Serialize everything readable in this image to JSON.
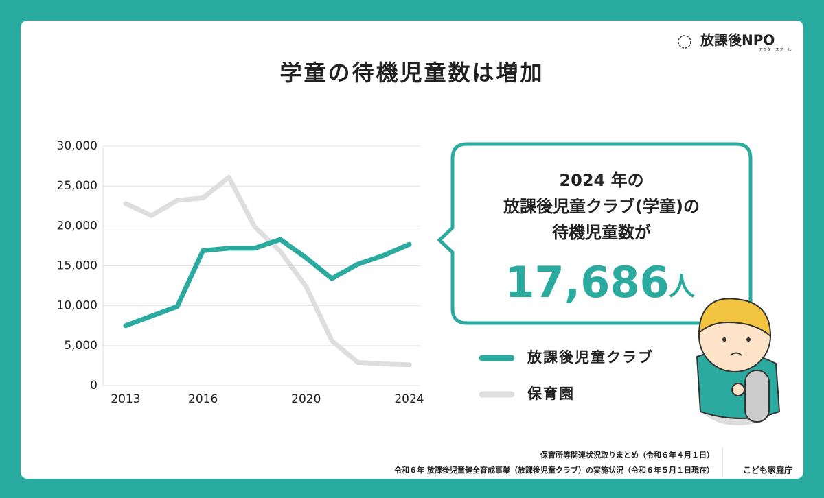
{
  "chart_data": {
    "type": "line",
    "title": "学童の待機児童数は増加",
    "categories": [
      "2013",
      null,
      null,
      "2016",
      null,
      null,
      null,
      "2020",
      null,
      null,
      null,
      "2024"
    ],
    "series": [
      {
        "name": "放課後児童クラブ",
        "color": "#2bab9f",
        "values": [
          7500,
          8700,
          9900,
          16900,
          17200,
          17200,
          18300,
          16000,
          13400,
          15200,
          16300,
          17686
        ]
      },
      {
        "name": "保育園",
        "color": "#dedede",
        "values": [
          22800,
          21300,
          23200,
          23500,
          26100,
          19900,
          16800,
          12400,
          5600,
          2900,
          2700,
          2600
        ]
      }
    ],
    "ylim": [
      0,
      30000
    ],
    "yticks": [
      0,
      {
        "value": 5000,
        "label": "5,000"
      },
      {
        "value": 10000,
        "label": "10,000"
      },
      {
        "value": 15000,
        "label": "15,000"
      },
      {
        "value": 20000,
        "label": "20,000"
      },
      {
        "value": 25000,
        "label": "25,000"
      },
      {
        "value": 30000,
        "label": "30,000"
      }
    ],
    "grid": true
  },
  "callout": {
    "lines": [
      "2024 年の",
      "放課後児童クラブ(学童)の",
      "待機児童数が"
    ],
    "value": "17,686",
    "unit": "人"
  },
  "logo": {
    "name": "放課後NPO",
    "sub": "アフタースクール"
  },
  "sources": [
    "保育所等関連状況取りまとめ（令和６年４月１日）",
    "令和６年 放課後児童健全育成事業（放課後児童クラブ）の実施状況（令和６年５月１日現在）"
  ],
  "agency": "こども家庭庁"
}
